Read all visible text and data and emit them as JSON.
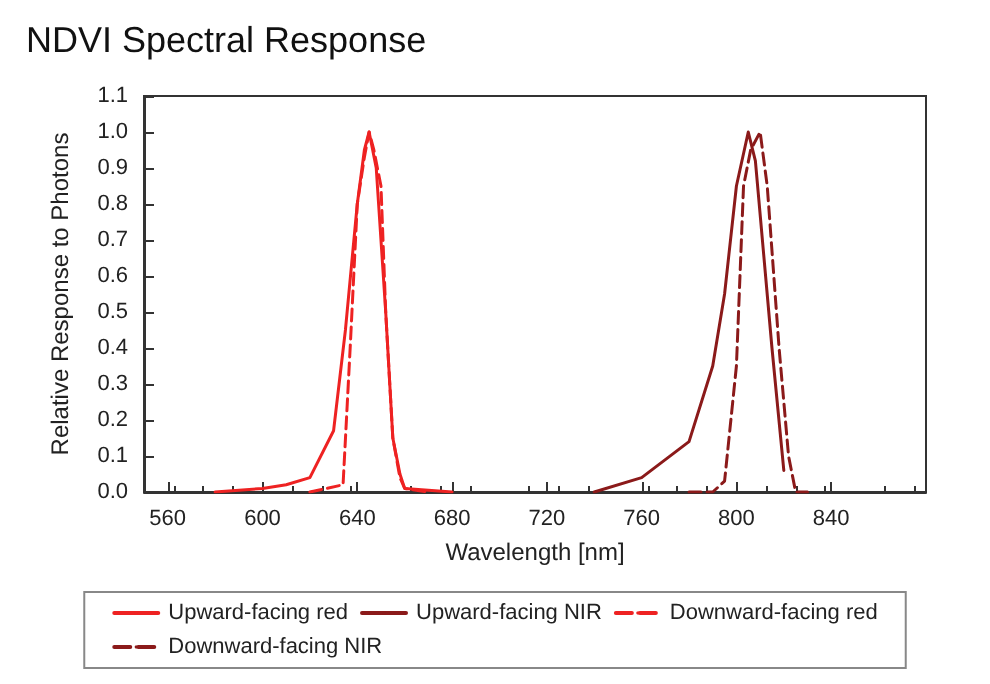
{
  "chart_data": {
    "type": "line",
    "title": "NDVI Spectral Response",
    "xlabel": "Wavelength [nm]",
    "ylabel": "Relative Response to Photons",
    "xlim": [
      550,
      880
    ],
    "xticks": [
      560,
      600,
      640,
      680,
      720,
      760,
      800,
      840
    ],
    "ylim": [
      0,
      1.1
    ],
    "yticks": [
      {
        "value": 0,
        "label": "0.0"
      },
      0.1,
      0.2,
      0.3,
      0.4,
      0.5,
      0.6,
      0.7,
      0.8,
      0.9,
      {
        "value": 1,
        "label": "1.0"
      },
      1.1
    ],
    "grid": false,
    "legend": "bottom",
    "marker": "none",
    "series": [
      {
        "name": "Upward-facing red",
        "color": "#ee2222",
        "line_style": "solid",
        "x": [
          580,
          600,
          610,
          620,
          630,
          635,
          640,
          643,
          645,
          648,
          652,
          655,
          658,
          660,
          680
        ],
        "values": [
          0,
          0.01,
          0.02,
          0.04,
          0.17,
          0.45,
          0.8,
          0.95,
          1.0,
          0.9,
          0.5,
          0.15,
          0.05,
          0.01,
          0
        ]
      },
      {
        "name": "Upward-facing NIR",
        "color": "#8b1a1a",
        "line_style": "solid",
        "x": [
          740,
          760,
          780,
          790,
          795,
          800,
          805,
          808,
          815,
          820
        ],
        "values": [
          0,
          0.04,
          0.14,
          0.35,
          0.55,
          0.85,
          1.0,
          0.92,
          0.4,
          0.06
        ]
      },
      {
        "name": "Downward-facing red",
        "color": "#ee2222",
        "line_style": "dashed",
        "x": [
          620,
          634,
          637,
          640,
          643,
          645,
          647,
          650,
          652,
          655,
          658,
          660,
          670
        ],
        "values": [
          0,
          0.02,
          0.4,
          0.8,
          0.93,
          1.0,
          0.95,
          0.85,
          0.5,
          0.15,
          0.04,
          0.01,
          0
        ]
      },
      {
        "name": "Downward-facing NIR",
        "color": "#8b1a1a",
        "line_style": "dashed",
        "x": [
          780,
          790,
          795,
          800,
          803,
          806,
          810,
          813,
          818,
          822,
          825,
          830
        ],
        "values": [
          0,
          0,
          0.03,
          0.35,
          0.85,
          0.95,
          1.0,
          0.85,
          0.4,
          0.1,
          0,
          0
        ]
      }
    ]
  }
}
